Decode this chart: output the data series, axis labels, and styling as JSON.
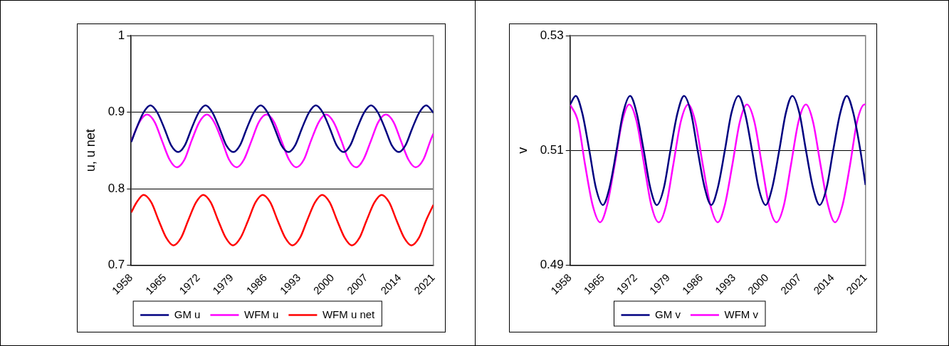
{
  "chart_data": [
    {
      "type": "line",
      "ylabel": "u, u net",
      "xlim": [
        1958,
        2021
      ],
      "xticks": [
        1958,
        1965,
        1972,
        1979,
        1986,
        1993,
        2000,
        2007,
        2014,
        2021
      ],
      "ylim": [
        0.7,
        1
      ],
      "yticks": [
        0.7,
        0.8,
        0.9,
        1
      ],
      "grid": "y",
      "legend": "bottom",
      "marker": "none",
      "line_style": "solid",
      "series": [
        {
          "name": "GM u",
          "color": "#000080",
          "x": [
            1958,
            1959.1,
            1960.6,
            1962.0,
            1963.4,
            1964.9,
            1966.3,
            1967.8,
            1969.2,
            1970.6,
            1972.1,
            1973.5,
            1974.9,
            1976.4,
            1977.8,
            1979.3,
            1980.7,
            1982.1,
            1983.6,
            1985.0,
            1986.4,
            1987.9,
            1989.3,
            1990.8,
            1992.2,
            1993.6,
            1995.1,
            1996.5,
            1997.9,
            1999.4,
            2000.8,
            2002.3,
            2003.7,
            2005.1,
            2006.6,
            2008.0,
            2009.4,
            2010.9,
            2012.3,
            2013.8,
            2015.2,
            2016.6,
            2018.1,
            2019.5,
            2020.9,
            2021
          ],
          "values": [
            0.861,
            0.879,
            0.9,
            0.909,
            0.9,
            0.879,
            0.857,
            0.848,
            0.857,
            0.879,
            0.9,
            0.909,
            0.9,
            0.879,
            0.857,
            0.848,
            0.857,
            0.879,
            0.9,
            0.909,
            0.9,
            0.879,
            0.857,
            0.848,
            0.857,
            0.879,
            0.9,
            0.909,
            0.9,
            0.879,
            0.857,
            0.848,
            0.857,
            0.879,
            0.9,
            0.909,
            0.9,
            0.879,
            0.857,
            0.848,
            0.857,
            0.879,
            0.9,
            0.909,
            0.9,
            0.899
          ]
        },
        {
          "name": "WFM u",
          "color": "#ff00ff",
          "x": [
            1958,
            1959.7,
            1961.3,
            1962.9,
            1964.4,
            1966.0,
            1967.5,
            1969.1,
            1970.6,
            1972.2,
            1973.8,
            1975.3,
            1976.9,
            1978.4,
            1980.0,
            1981.5,
            1983.1,
            1984.6,
            1986.2,
            1987.8,
            1989.3,
            1990.9,
            1992.4,
            1994.0,
            1995.5,
            1997.1,
            1998.6,
            2000.2,
            2001.8,
            2003.3,
            2004.9,
            2006.4,
            2008.0,
            2009.5,
            2011.1,
            2012.7,
            2014.2,
            2015.8,
            2017.3,
            2018.9,
            2020.4,
            2021
          ],
          "values": [
            0.862,
            0.887,
            0.897,
            0.887,
            0.863,
            0.838,
            0.828,
            0.838,
            0.863,
            0.887,
            0.897,
            0.887,
            0.863,
            0.838,
            0.828,
            0.838,
            0.863,
            0.887,
            0.897,
            0.887,
            0.863,
            0.838,
            0.828,
            0.838,
            0.863,
            0.887,
            0.897,
            0.887,
            0.863,
            0.838,
            0.828,
            0.838,
            0.863,
            0.887,
            0.897,
            0.887,
            0.863,
            0.838,
            0.828,
            0.838,
            0.863,
            0.872
          ]
        },
        {
          "name": "WFM u net",
          "color": "#ff0000",
          "x": [
            1958,
            1959.1,
            1960.6,
            1962.2,
            1963.7,
            1965.3,
            1966.8,
            1968.4,
            1969.9,
            1971.5,
            1973.0,
            1974.6,
            1976.1,
            1977.7,
            1979.2,
            1980.8,
            1982.4,
            1983.9,
            1985.4,
            1987.0,
            1988.5,
            1990.1,
            1991.6,
            1993.2,
            1994.7,
            1996.3,
            1997.8,
            1999.4,
            2000.9,
            2002.5,
            2004.0,
            2005.6,
            2007.1,
            2008.7,
            2010.2,
            2011.8,
            2013.3,
            2014.9,
            2016.4,
            2018.0,
            2019.5,
            2021
          ],
          "values": [
            0.769,
            0.782,
            0.792,
            0.782,
            0.759,
            0.736,
            0.726,
            0.736,
            0.759,
            0.782,
            0.792,
            0.782,
            0.759,
            0.736,
            0.726,
            0.736,
            0.759,
            0.782,
            0.792,
            0.782,
            0.759,
            0.736,
            0.726,
            0.736,
            0.759,
            0.782,
            0.792,
            0.782,
            0.759,
            0.736,
            0.726,
            0.736,
            0.759,
            0.782,
            0.792,
            0.782,
            0.759,
            0.736,
            0.726,
            0.736,
            0.759,
            0.779
          ]
        }
      ]
    },
    {
      "type": "line",
      "ylabel": "v",
      "xlim": [
        1958,
        2021
      ],
      "xticks": [
        1958,
        1965,
        1972,
        1979,
        1986,
        1993,
        2000,
        2007,
        2014,
        2021
      ],
      "ylim": [
        0.49,
        0.53
      ],
      "yticks": [
        0.49,
        0.51,
        0.53
      ],
      "grid": "y",
      "legend": "bottom",
      "marker": "none",
      "line_style": "solid",
      "series": [
        {
          "name": "GM v",
          "color": "#000080",
          "x": [
            1958,
            1959.2,
            1960.6,
            1962.1,
            1963.5,
            1965.0,
            1966.4,
            1967.9,
            1969.3,
            1970.8,
            1972.2,
            1973.7,
            1975.1,
            1976.5,
            1978.0,
            1979.4,
            1980.9,
            1982.3,
            1983.8,
            1985.2,
            1986.7,
            1988.1,
            1989.5,
            1991.0,
            1992.4,
            1993.9,
            1995.3,
            1996.8,
            1998.2,
            1999.7,
            2001.1,
            2002.6,
            2004.0,
            2005.4,
            2006.9,
            2008.3,
            2009.8,
            2011.2,
            2012.7,
            2014.1,
            2015.6,
            2017.0,
            2018.4,
            2019.9,
            2021
          ],
          "values": [
            0.518,
            0.5195,
            0.5165,
            0.51,
            0.5035,
            0.5005,
            0.5035,
            0.51,
            0.5165,
            0.5195,
            0.5165,
            0.51,
            0.5035,
            0.5005,
            0.5035,
            0.51,
            0.5165,
            0.5195,
            0.5165,
            0.51,
            0.5035,
            0.5005,
            0.5035,
            0.51,
            0.5165,
            0.5195,
            0.5165,
            0.51,
            0.5035,
            0.5005,
            0.5035,
            0.51,
            0.5165,
            0.5195,
            0.5165,
            0.51,
            0.5035,
            0.5005,
            0.5035,
            0.51,
            0.5165,
            0.5195,
            0.5165,
            0.51,
            0.504
          ]
        },
        {
          "name": "WFM v",
          "color": "#ff00ff",
          "x": [
            1958,
            1959.7,
            1961.2,
            1962.8,
            1964.4,
            1965.9,
            1967.5,
            1969.1,
            1970.6,
            1972.2,
            1973.8,
            1975.3,
            1976.9,
            1978.5,
            1980.0,
            1981.6,
            1983.2,
            1984.7,
            1986.3,
            1987.9,
            1989.5,
            1991.0,
            1992.6,
            1994.2,
            1995.7,
            1997.3,
            1998.9,
            2000.4,
            2002.0,
            2003.6,
            2005.1,
            2006.7,
            2008.3,
            2009.8,
            2011.4,
            2013.0,
            2014.5,
            2016.1,
            2017.7,
            2019.2,
            2020.8,
            2021
          ],
          "values": [
            0.518,
            0.515,
            0.5075,
            0.5005,
            0.4975,
            0.5005,
            0.5075,
            0.515,
            0.518,
            0.515,
            0.5075,
            0.5005,
            0.4975,
            0.5005,
            0.5075,
            0.515,
            0.518,
            0.515,
            0.5075,
            0.5005,
            0.4975,
            0.5005,
            0.5075,
            0.515,
            0.518,
            0.515,
            0.5075,
            0.5005,
            0.4975,
            0.5005,
            0.5075,
            0.515,
            0.518,
            0.515,
            0.5075,
            0.5005,
            0.4975,
            0.5005,
            0.5075,
            0.515,
            0.518,
            0.518
          ]
        }
      ]
    }
  ]
}
